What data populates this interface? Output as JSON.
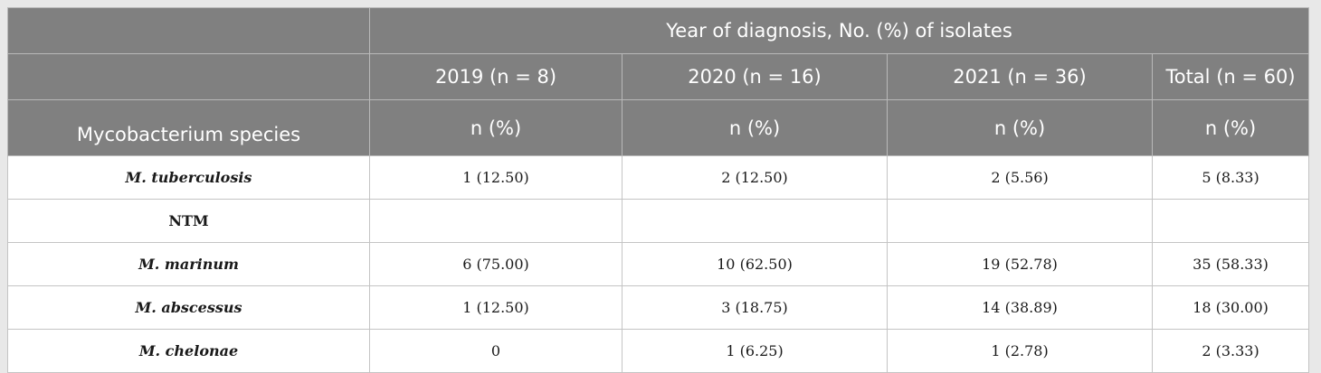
{
  "table": {
    "group_header": "Year of diagnosis, No. (%) of isolates",
    "first_column_header": "Mycobacterium species",
    "year_headers": [
      "2019 (n = 8)",
      "2020 (n = 16)",
      "2021 (n = 36)",
      "Total (n = 60)"
    ],
    "unit_headers": [
      "n (%)",
      "n (%)",
      "n (%)",
      "n (%)"
    ],
    "rows": [
      {
        "species": "M. tuberculosis",
        "values": [
          "1 (12.50)",
          "2 (12.50)",
          "2 (5.56)",
          "5 (8.33)"
        ]
      },
      {
        "species": "NTM",
        "values": [
          "",
          "",
          "",
          ""
        ]
      },
      {
        "species": "M. marinum",
        "values": [
          "6 (75.00)",
          "10 (62.50)",
          "19 (52.78)",
          "35 (58.33)"
        ]
      },
      {
        "species": "M. abscessus",
        "values": [
          "1 (12.50)",
          "3 (18.75)",
          "14 (38.89)",
          "18 (30.00)"
        ]
      },
      {
        "species": "M. chelonae",
        "values": [
          "0",
          "1 (6.25)",
          "1 (2.78)",
          "2 (3.33)"
        ]
      }
    ]
  }
}
